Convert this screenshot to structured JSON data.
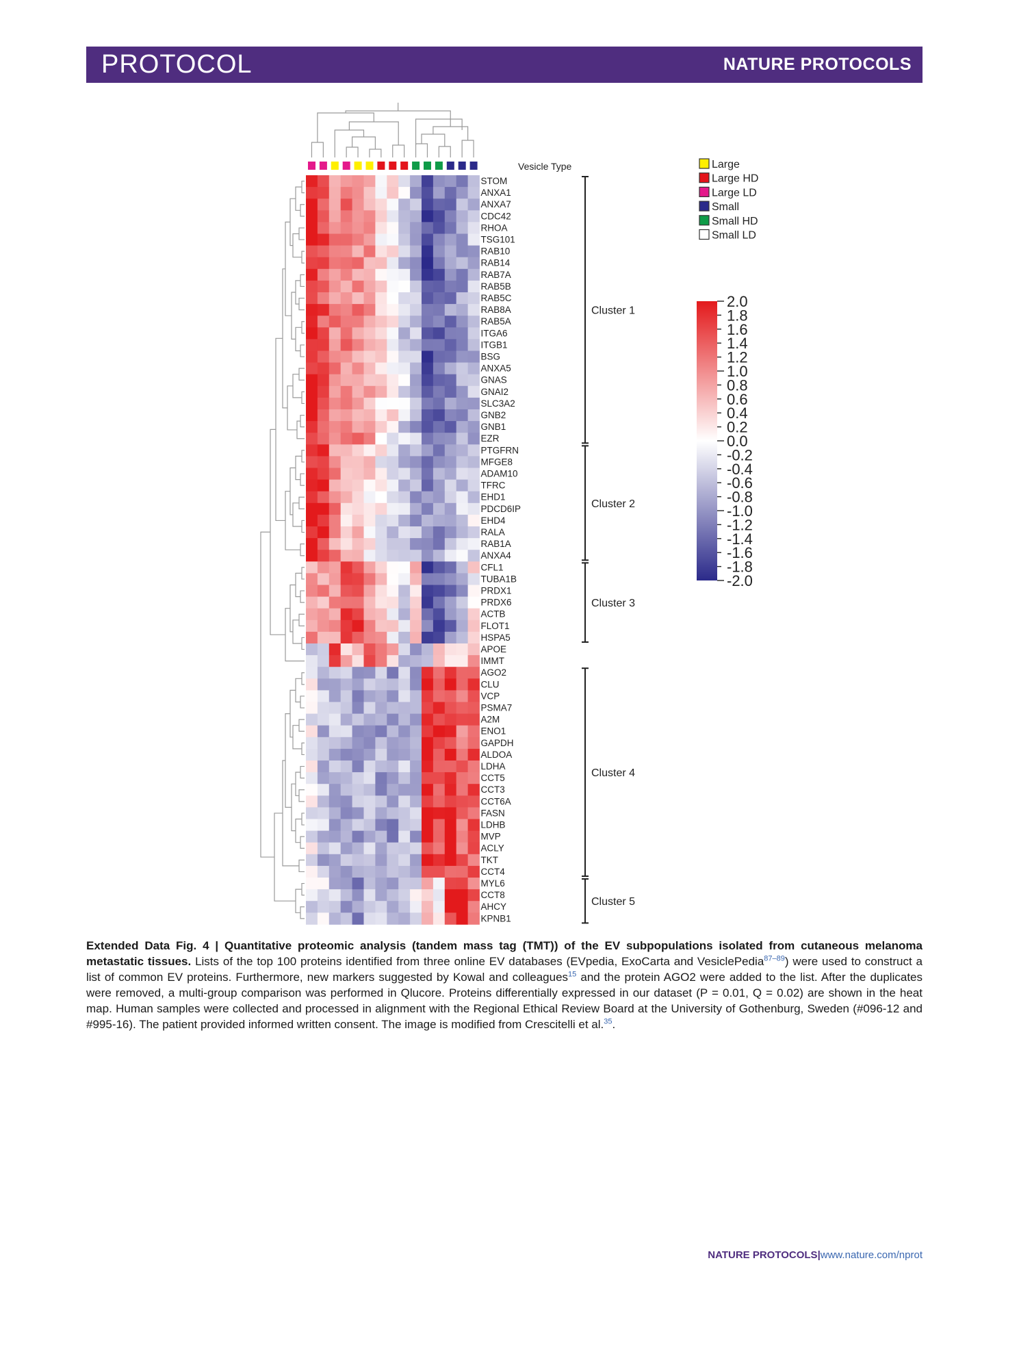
{
  "header": {
    "section_label": "PROTOCOL",
    "journal_label": "NATURE PROTOCOLS"
  },
  "colors": {
    "banner": "#4f2d7f",
    "link": "#3a67b0",
    "scale_high": "#e31a1c",
    "scale_mid": "#ffffff",
    "scale_low": "#2b2a8a"
  },
  "chart_data": {
    "type": "heatmap",
    "title": "Quantitative proteomic analysis of EV subpopulations",
    "row_labels": [
      "STOM",
      "ANXA1",
      "ANXA7",
      "CDC42",
      "RHOA",
      "TSG101",
      "RAB10",
      "RAB14",
      "RAB7A",
      "RAB5B",
      "RAB5C",
      "RAB8A",
      "RAB5A",
      "ITGA6",
      "ITGB1",
      "BSG",
      "ANXA5",
      "GNAS",
      "GNAI2",
      "SLC3A2",
      "GNB2",
      "GNB1",
      "EZR",
      "PTGFRN",
      "MFGE8",
      "ADAM10",
      "TFRC",
      "EHD1",
      "PDCD6IP",
      "EHD4",
      "RALA",
      "RAB1A",
      "ANXA4",
      "CFL1",
      "TUBA1B",
      "PRDX1",
      "PRDX6",
      "ACTB",
      "FLOT1",
      "HSPA5",
      "APOE",
      "IMMT",
      "AGO2",
      "CLU",
      "VCP",
      "PSMA7",
      "A2M",
      "ENO1",
      "GAPDH",
      "ALDOA",
      "LDHA",
      "CCT5",
      "CCT3",
      "CCT6A",
      "FASN",
      "LDHB",
      "MVP",
      "ACLY",
      "TKT",
      "CCT4",
      "MYL6",
      "CCT8",
      "AHCY",
      "KPNB1"
    ],
    "vesicle_type_label": "Vesicle Type",
    "column_types": [
      "Large LD",
      "Large LD",
      "Large",
      "Large LD",
      "Large",
      "Large",
      "Large HD",
      "Large HD",
      "Large HD",
      "Small HD",
      "Small HD",
      "Small HD",
      "Small",
      "Small",
      "Small"
    ],
    "legend": [
      {
        "name": "Large",
        "color": "#ffef00"
      },
      {
        "name": "Large HD",
        "color": "#e3141b"
      },
      {
        "name": "Large LD",
        "color": "#e4198b"
      },
      {
        "name": "Small",
        "color": "#2b2a8a"
      },
      {
        "name": "Small HD",
        "color": "#0f9b48"
      },
      {
        "name": "Small LD",
        "color": "#ffffff"
      }
    ],
    "color_scale": {
      "min": -2.0,
      "max": 2.0,
      "ticks": [
        "2.0",
        "1.8",
        "1.6",
        "1.4",
        "1.2",
        "1.0",
        "0.8",
        "0.6",
        "0.4",
        "0.2",
        "0.0",
        "-0.2",
        "-0.4",
        "-0.6",
        "-0.8",
        "-1.0",
        "-1.2",
        "-1.4",
        "-1.6",
        "-1.8",
        "-2.0"
      ]
    },
    "clusters": [
      {
        "label": "Cluster 1",
        "first_row": 0,
        "last_row": 22
      },
      {
        "label": "Cluster 2",
        "first_row": 23,
        "last_row": 32
      },
      {
        "label": "Cluster 3",
        "first_row": 33,
        "last_row": 39
      },
      {
        "label": "Cluster 4",
        "first_row": 42,
        "last_row": 59
      },
      {
        "label": "Cluster 5",
        "first_row": 60,
        "last_row": 63
      }
    ],
    "cluster_profiles": [
      [
        1.95,
        1.5,
        1.0,
        1.1,
        1.0,
        0.8,
        0.3,
        0.1,
        -0.4,
        -0.7,
        -1.6,
        -1.3,
        -1.1,
        -0.9,
        -0.6
      ],
      [
        1.95,
        1.85,
        1.0,
        0.5,
        0.5,
        0.3,
        0.0,
        -0.3,
        -0.5,
        -0.7,
        -1.1,
        -0.9,
        -0.6,
        -0.4,
        -0.3
      ],
      [
        0.8,
        0.8,
        1.0,
        1.5,
        1.6,
        0.9,
        0.6,
        0.2,
        -0.4,
        0.4,
        -1.5,
        -1.4,
        -1.2,
        -0.9,
        0.1
      ],
      [
        -0.1,
        -0.6,
        -0.6,
        -0.7,
        -0.8,
        -0.7,
        -0.8,
        -0.9,
        -0.6,
        -0.7,
        1.9,
        1.6,
        1.7,
        1.2,
        1.4
      ],
      [
        -0.3,
        -0.2,
        -0.5,
        -0.9,
        -1.1,
        -0.7,
        -0.5,
        -0.6,
        -0.8,
        -0.3,
        0.4,
        0.2,
        1.8,
        1.9,
        1.4
      ],
      [
        -0.6,
        -0.5,
        1.7,
        0.6,
        0.4,
        1.8,
        1.5,
        0.6,
        -0.5,
        -0.6,
        -0.4,
        0.5,
        0.6,
        0.4,
        0.6
      ]
    ]
  },
  "caption": {
    "label": "Extended Data Fig. 4 |",
    "title": "Quantitative proteomic analysis (tandem mass tag (TMT)) of the EV subpopulations isolated from cutaneous melanoma metastatic tissues.",
    "text1": "Lists of the top 100 proteins identified from three online EV databases (EVpedia, ExoCarta and VesiclePedia",
    "ref1": "87–89",
    "text2": ") were used to construct a list of common EV proteins. Furthermore, new markers suggested by Kowal and colleagues",
    "ref2": "15",
    "text3": " and the protein AGO2 were added to the list. After the duplicates were removed, a multi-group comparison was performed in Qlucore. Proteins differentially expressed in our dataset (P = 0.01, Q = 0.02) are shown in the heat map. Human samples were collected and processed in alignment with the Regional Ethical Review Board at the University of Gothenburg, Sweden (#096-12 and #995-16). The patient provided informed written consent. The image is modified from Crescitelli et al.",
    "ref3": "35",
    "text4": "."
  },
  "footer": {
    "journal": "NATURE PROTOCOLS",
    "separator": "|",
    "url": "www.nature.com/nprot"
  }
}
